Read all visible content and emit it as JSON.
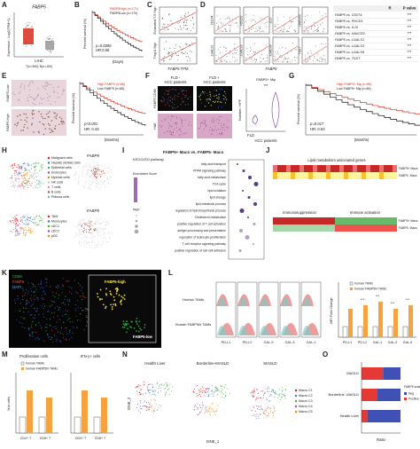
{
  "A": {
    "label": "A",
    "title": "FABP5",
    "y_label": "Expression - Log2(TPM+1)",
    "x_label": "LIHC",
    "n": "T(n=369); N(n=160)"
  },
  "B": {
    "label": "B",
    "legend": [
      "FABP5High (n=171)",
      "FABP5Low (n=170)"
    ],
    "p": "p=0.0096",
    "hr": "HR:0.58",
    "y_label": "Percent survival (%)",
    "x_label": "(Days)"
  },
  "C": {
    "label": "C",
    "y_labels": [
      "Exhausted T-S Sign",
      "Treg & Sign"
    ],
    "x_label": "FABP5 TPM"
  },
  "D": {
    "label": "D",
    "genes": [
      "CD274",
      "PDCD1",
      "IL10",
      "HAVCR2",
      "LGALS1",
      "LGALS3",
      "LGALS9",
      "TIGIT"
    ],
    "x_label": "FABP5",
    "table": {
      "header": [
        "R",
        "P value"
      ],
      "rows": [
        [
          "FABP5 vs. CD274",
          "***"
        ],
        [
          "FABP5 vs. PDCD1",
          "***"
        ],
        [
          "FABP5 vs. IL10",
          "***"
        ],
        [
          "FABP5 vs. HAVCR2",
          "***"
        ],
        [
          "FABP5 vs. LGALS1",
          "***"
        ],
        [
          "FABP5 vs. LGALS3",
          "***"
        ],
        [
          "FABP5 vs. LGALS9",
          "***"
        ],
        [
          "FABP5 vs. TIGIT",
          "***"
        ]
      ]
    }
  },
  "E": {
    "label": "E",
    "images": [
      "FABP5-Low",
      "FABP5-High"
    ],
    "legend": [
      "High FABP5 (n=86)",
      "Low FABP5 (n=86)"
    ],
    "p": "p<0.001",
    "hr": "HR: 0.43",
    "y_label": "Percent survival (%)",
    "x_label": "(Months)"
  },
  "F": {
    "label": "F",
    "columns": [
      [
        "FLD -",
        "HCC patients"
      ],
      [
        "FLD +",
        "HCC patients"
      ]
    ],
    "rows": [
      "FABP5 CD68",
      "H&E"
    ],
    "plot_title": "FABP5+ Mφ",
    "sig": "***",
    "y_label": "Number / HPF",
    "x_label": "FLD",
    "x_sub": "HCC patients"
  },
  "G": {
    "label": "G",
    "legend": [
      "High FABP5+ Mφ (n=86)",
      "Low FABP5+ Mφ (n=86)"
    ],
    "p": "p=0.017",
    "hr": "HR: 0.53",
    "y_label": "Percent survival (%)",
    "x_label": "(Months)"
  },
  "H": {
    "label": "H",
    "legend1": [
      "Malignant cells",
      "Hepatic stellate cells",
      "Epithelial cells",
      "Endocytes",
      "Myeloid cells",
      "NK cells",
      "T cells",
      "B cells",
      "Plasma cells"
    ],
    "legend2": [
      "TAM",
      "Monocytes",
      "cDC1",
      "cDC2",
      "pDC"
    ],
    "feature": [
      "FABP5",
      "FABP5"
    ]
  },
  "I": {
    "label": "I",
    "title": "FABP5+ Macs vs. FABP5- Macs",
    "subtitle": "KEGG/GO pathway",
    "legend": [
      "Enrichment Score",
      "log.p"
    ],
    "terms": [
      "fatty acid transport",
      "PPAR signaling pathway",
      "fatty acid metabolism",
      "TCA cycle",
      "lipid oxidation",
      "lipid storage",
      "lipid metabolic process",
      "regulation of lipid biosynthetic process",
      "Cholesterol metabolism",
      "positive regulation of T cell activation",
      "antigen processing and presentation",
      "regulation of leukocyte proliferation",
      "T cell receptor signaling pathway",
      "positive regulation of cell-cell adhesion"
    ]
  },
  "J": {
    "label": "J",
    "title": "Lipid metabolism associated genes",
    "groups": [
      "Immunosuppression",
      "Immune activation"
    ],
    "rows1": [
      "FABP5+ Macs",
      "FABP5- Macs"
    ],
    "rows2": [
      "FABP5+ Macs",
      "FABP5- Macs"
    ]
  },
  "K": {
    "label": "K",
    "channels": [
      "CD68",
      "FABP5",
      "DAPI"
    ],
    "callouts": [
      "FABP5-high",
      "FABP5-low"
    ]
  },
  "L": {
    "label": "L",
    "rows": [
      "Human TAMs",
      "Human FABP5hi TAMs"
    ],
    "markers": [
      "PD-L1",
      "PD-L2",
      "GAL-9",
      "GAL-3",
      "GAL-1"
    ],
    "y_label": "MFI Fold Change",
    "legend": [
      "human TAMs",
      "human FABP5hi TAMs"
    ],
    "categories": [
      "PD-L1",
      "PD-L2",
      "GAL-1",
      "GAL-3",
      "GAL-9"
    ],
    "sig": [
      "***",
      "***",
      "***",
      "***"
    ]
  },
  "M": {
    "label": "M",
    "titles": [
      "Proliferation cells",
      "IFN-γ+ cells"
    ],
    "legend": [
      "human TAMs",
      "human FABP5hi TAMs"
    ],
    "y_label": "% in cells",
    "categories": [
      "CD4+ T",
      "CD8+ T",
      "CD4+ T",
      "CD8+ T"
    ]
  },
  "N": {
    "label": "N",
    "titles": [
      "Health Liver",
      "Borderline-MASLD",
      "MASLD"
    ],
    "legend": [
      "Macro C1",
      "Macro C2",
      "Macro C3",
      "Macro C4",
      "Macro C5"
    ],
    "x_label": "tSNE_1",
    "y_label": "tSNE_2"
  },
  "O": {
    "label": "O",
    "categories": [
      "MASLD",
      "Borderline -MASLD",
      "Health Liver"
    ],
    "legend_title": "FABP5 scale",
    "legend": [
      "Neg",
      "Positive"
    ],
    "x_label": "Ratio"
  }
}
